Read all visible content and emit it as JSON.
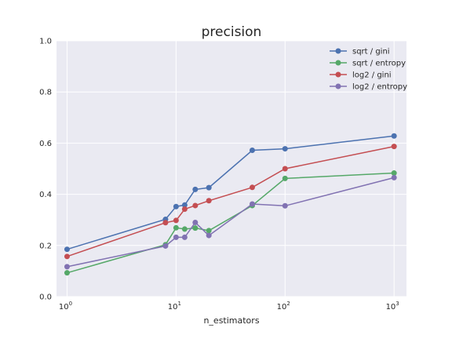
{
  "chart_data": {
    "type": "line",
    "title": "precision",
    "xlabel": "n_estimators",
    "ylabel": "",
    "xscale": "log",
    "xlim": [
      0.8,
      1300
    ],
    "ylim": [
      0.0,
      1.0
    ],
    "xticks": [
      {
        "value": 1,
        "base": "10",
        "exp": "0"
      },
      {
        "value": 10,
        "base": "10",
        "exp": "1"
      },
      {
        "value": 100,
        "base": "10",
        "exp": "2"
      },
      {
        "value": 1000,
        "base": "10",
        "exp": "3"
      }
    ],
    "yticks": [
      "0.0",
      "0.2",
      "0.4",
      "0.6",
      "0.8",
      "1.0"
    ],
    "grid": true,
    "legend_position": "top-right",
    "background_color": "#eaeaf2",
    "series": [
      {
        "name": "sqrt / gini",
        "color": "#4c72b0",
        "x": [
          1,
          8,
          10,
          12,
          15,
          20,
          50,
          100,
          1000
        ],
        "y": [
          0.185,
          0.302,
          0.352,
          0.358,
          0.419,
          0.426,
          0.572,
          0.578,
          0.628
        ]
      },
      {
        "name": "sqrt / entropy",
        "color": "#55a868",
        "x": [
          1,
          8,
          10,
          12,
          15,
          20,
          50,
          100,
          1000
        ],
        "y": [
          0.093,
          0.203,
          0.269,
          0.264,
          0.268,
          0.258,
          0.356,
          0.462,
          0.483
        ]
      },
      {
        "name": "log2 / gini",
        "color": "#c44e52",
        "x": [
          1,
          8,
          10,
          12,
          15,
          20,
          50,
          100,
          1000
        ],
        "y": [
          0.157,
          0.289,
          0.298,
          0.342,
          0.356,
          0.375,
          0.427,
          0.5,
          0.587
        ]
      },
      {
        "name": "log2 / entropy",
        "color": "#8172b2",
        "x": [
          1,
          8,
          10,
          12,
          15,
          20,
          50,
          100,
          1000
        ],
        "y": [
          0.117,
          0.198,
          0.232,
          0.232,
          0.29,
          0.239,
          0.362,
          0.355,
          0.465
        ]
      }
    ]
  }
}
